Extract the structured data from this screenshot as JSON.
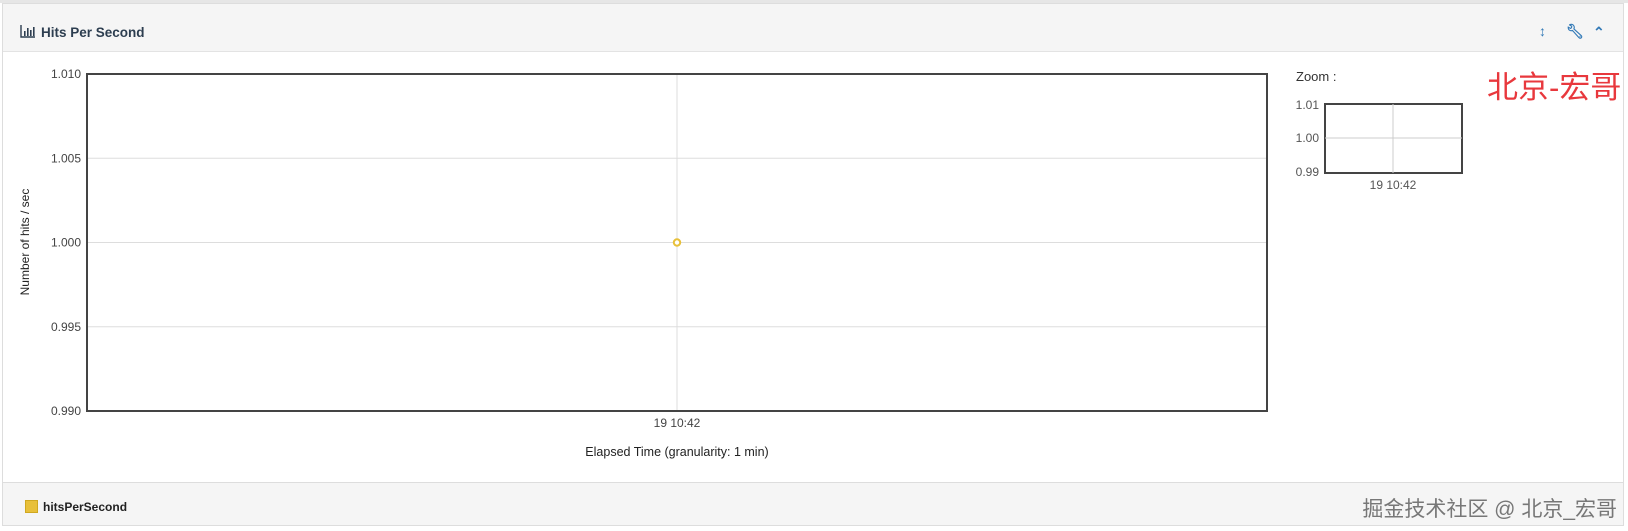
{
  "panel": {
    "title": "Hits Per Second",
    "icons": [
      "bar-chart-icon",
      "resize-vertical-icon",
      "wrench-icon",
      "chevron-up-icon"
    ]
  },
  "zoom": {
    "label": "Zoom :",
    "y_ticks": [
      "1.01",
      "1.00",
      "0.99"
    ],
    "x_tick": "19 10:42"
  },
  "watermark_red": "北京-宏哥",
  "watermark_footer": "掘金技术社区 @ 北京_宏哥",
  "legend": [
    {
      "label": "hitsPerSecond",
      "color": "#e8c03a"
    }
  ],
  "chart_data": {
    "type": "line",
    "xlabel": "Elapsed Time (granularity: 1 min)",
    "ylabel": "Number of hits / sec",
    "ylim": [
      0.99,
      1.01
    ],
    "y_ticks": [
      "1.010",
      "1.005",
      "1.000",
      "0.995",
      "0.990"
    ],
    "x_ticks": [
      "19 10:42"
    ],
    "grid": true,
    "legend_position": "bottom-left",
    "series": [
      {
        "name": "hitsPerSecond",
        "color": "#e8c03a",
        "x": [
          "19 10:42"
        ],
        "values": [
          1.0
        ]
      }
    ]
  }
}
